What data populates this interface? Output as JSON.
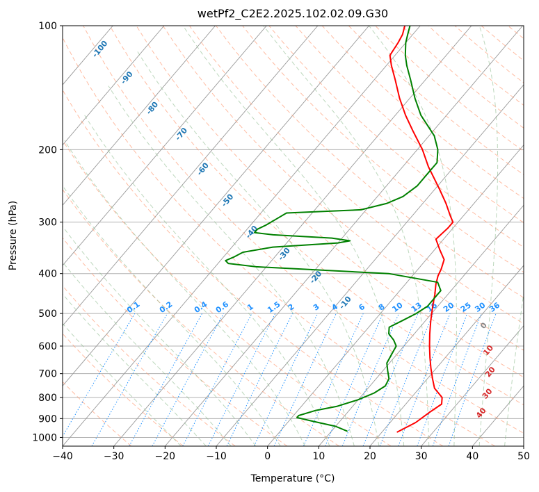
{
  "chart_data": {
    "type": "skew-t",
    "title": "wetPf2_C2E2.2025.102.02.09.G30",
    "xlabel": "Temperature (°C)",
    "ylabel": "Pressure (hPa)",
    "xlim": [
      -40,
      50
    ],
    "ylim": [
      1050,
      100
    ],
    "yscale": "log",
    "x_ticks": [
      "−40",
      "−30",
      "−20",
      "−10",
      "0",
      "10",
      "20",
      "30",
      "40",
      "50"
    ],
    "x_tick_values": [
      -40,
      -30,
      -20,
      -10,
      0,
      10,
      20,
      30,
      40,
      50
    ],
    "y_ticks": [
      "100",
      "200",
      "300",
      "400",
      "500",
      "600",
      "700",
      "800",
      "900",
      "1000"
    ],
    "y_tick_values": [
      100,
      200,
      300,
      400,
      500,
      600,
      700,
      800,
      900,
      1000
    ],
    "grid": true,
    "series": [
      {
        "name": "",
        "role": "temperature",
        "color": "#ff0000",
        "points": [
          {
            "p": 970,
            "t": 23
          },
          {
            "p": 920,
            "t": 25
          },
          {
            "p": 870,
            "t": 26
          },
          {
            "p": 830,
            "t": 27
          },
          {
            "p": 800,
            "t": 26
          },
          {
            "p": 760,
            "t": 23
          },
          {
            "p": 720,
            "t": 21
          },
          {
            "p": 680,
            "t": 19
          },
          {
            "p": 640,
            "t": 17
          },
          {
            "p": 600,
            "t": 15
          },
          {
            "p": 560,
            "t": 13
          },
          {
            "p": 520,
            "t": 11
          },
          {
            "p": 480,
            "t": 9
          },
          {
            "p": 450,
            "t": 7.5
          },
          {
            "p": 425,
            "t": 6
          },
          {
            "p": 405,
            "t": 5
          },
          {
            "p": 390,
            "t": 4.5
          },
          {
            "p": 370,
            "t": 3.5
          },
          {
            "p": 350,
            "t": 1
          },
          {
            "p": 330,
            "t": -1.5
          },
          {
            "p": 310,
            "t": -1
          },
          {
            "p": 300,
            "t": -1
          },
          {
            "p": 290,
            "t": -2.5
          },
          {
            "p": 270,
            "t": -5.5
          },
          {
            "p": 250,
            "t": -9
          },
          {
            "p": 220,
            "t": -15
          },
          {
            "p": 200,
            "t": -19
          },
          {
            "p": 180,
            "t": -24
          },
          {
            "p": 165,
            "t": -28
          },
          {
            "p": 150,
            "t": -32
          },
          {
            "p": 135,
            "t": -36
          },
          {
            "p": 125,
            "t": -39
          },
          {
            "p": 118,
            "t": -41
          },
          {
            "p": 110,
            "t": -41.5
          },
          {
            "p": 105,
            "t": -42
          },
          {
            "p": 100,
            "t": -43
          }
        ]
      },
      {
        "name": "",
        "role": "dewpoint",
        "color": "#008000",
        "points": [
          {
            "p": 965,
            "t": 13
          },
          {
            "p": 940,
            "t": 10
          },
          {
            "p": 915,
            "t": 5
          },
          {
            "p": 895,
            "t": 1
          },
          {
            "p": 885,
            "t": 1
          },
          {
            "p": 860,
            "t": 3.5
          },
          {
            "p": 840,
            "t": 7
          },
          {
            "p": 810,
            "t": 10
          },
          {
            "p": 780,
            "t": 12
          },
          {
            "p": 750,
            "t": 13
          },
          {
            "p": 720,
            "t": 12.5
          },
          {
            "p": 690,
            "t": 11
          },
          {
            "p": 660,
            "t": 9.5
          },
          {
            "p": 630,
            "t": 9
          },
          {
            "p": 600,
            "t": 8.5
          },
          {
            "p": 580,
            "t": 7
          },
          {
            "p": 560,
            "t": 5
          },
          {
            "p": 540,
            "t": 4
          },
          {
            "p": 520,
            "t": 5.5
          },
          {
            "p": 500,
            "t": 7
          },
          {
            "p": 480,
            "t": 8
          },
          {
            "p": 460,
            "t": 8
          },
          {
            "p": 440,
            "t": 8
          },
          {
            "p": 420,
            "t": 6
          },
          {
            "p": 400,
            "t": -5
          },
          {
            "p": 385,
            "t": -32
          },
          {
            "p": 378,
            "t": -38
          },
          {
            "p": 372,
            "t": -39
          },
          {
            "p": 365,
            "t": -38
          },
          {
            "p": 355,
            "t": -37
          },
          {
            "p": 345,
            "t": -32
          },
          {
            "p": 337,
            "t": -20
          },
          {
            "p": 333,
            "t": -18
          },
          {
            "p": 328,
            "t": -22
          },
          {
            "p": 322,
            "t": -34
          },
          {
            "p": 318,
            "t": -38
          },
          {
            "p": 312,
            "t": -38
          },
          {
            "p": 305,
            "t": -37
          },
          {
            "p": 295,
            "t": -36
          },
          {
            "p": 285,
            "t": -35
          },
          {
            "p": 280,
            "t": -21
          },
          {
            "p": 270,
            "t": -17
          },
          {
            "p": 260,
            "t": -15
          },
          {
            "p": 245,
            "t": -14
          },
          {
            "p": 230,
            "t": -14
          },
          {
            "p": 215,
            "t": -14
          },
          {
            "p": 200,
            "t": -16
          },
          {
            "p": 185,
            "t": -19
          },
          {
            "p": 165,
            "t": -25
          },
          {
            "p": 150,
            "t": -29
          },
          {
            "p": 135,
            "t": -33
          },
          {
            "p": 125,
            "t": -36
          },
          {
            "p": 118,
            "t": -38
          },
          {
            "p": 110,
            "t": -40
          },
          {
            "p": 105,
            "t": -41
          },
          {
            "p": 100,
            "t": -42
          }
        ]
      }
    ],
    "dry_adiabat_labels": [
      "-100",
      "-90",
      "-80",
      "-70",
      "-60",
      "-50",
      "-40",
      "-30",
      "-20",
      "-10"
    ],
    "mixing_ratio_labels": [
      "0.1",
      "0.2",
      "0.4",
      "0.6",
      "1",
      "1.5",
      "2",
      "3",
      "4",
      "6",
      "8",
      "10",
      "13",
      "16",
      "20",
      "25",
      "30",
      "36"
    ],
    "moist_adiabat_labels": [
      "0",
      "10",
      "20",
      "30",
      "40"
    ],
    "colors": {
      "temperature": "#ff0000",
      "dewpoint": "#008000",
      "dry_adiabat_label": "#1f77b4",
      "mixing_ratio": "#1e90ff",
      "moist_adiabat_label": "#d62728",
      "zero_label": "#888888",
      "isotherm": "#999999",
      "dry_adiabat": "#ffa07a",
      "moist_adiabat": "#8fbc8f"
    }
  }
}
